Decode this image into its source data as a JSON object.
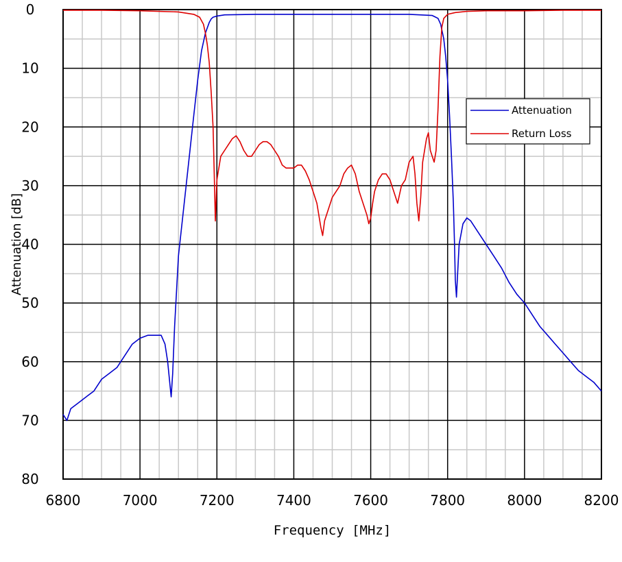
{
  "chart_data": {
    "type": "line",
    "xlabel": "Frequency [MHz]",
    "ylabel": "Attenuation [dB]",
    "xlim": [
      6800,
      8200
    ],
    "ylim": [
      0,
      80
    ],
    "y_inverted": true,
    "x_major_ticks": [
      6800,
      7000,
      7200,
      7400,
      7600,
      7800,
      8000,
      8200
    ],
    "x_tick_labels": [
      "6800",
      "7000",
      "7200",
      "7400",
      "7600",
      "7800",
      "8000",
      "8200"
    ],
    "y_major_ticks": [
      0,
      10,
      20,
      30,
      40,
      50,
      60,
      70,
      80
    ],
    "y_tick_labels": [
      "0",
      "10",
      "20",
      "30",
      "40",
      "50",
      "60",
      "70",
      "80"
    ],
    "x_minor_step": 50,
    "y_minor_step": 5,
    "grid": true,
    "legend_position": "right, upper-middle",
    "series": [
      {
        "name": "Attenuation",
        "color": "#0000cc",
        "x": [
          6800,
          6810,
          6820,
          6840,
          6860,
          6880,
          6900,
          6920,
          6940,
          6960,
          6980,
          7000,
          7020,
          7040,
          7055,
          7065,
          7072,
          7078,
          7081,
          7085,
          7090,
          7095,
          7100,
          7110,
          7120,
          7130,
          7140,
          7150,
          7160,
          7170,
          7180,
          7185,
          7190,
          7200,
          7210,
          7220,
          7300,
          7400,
          7500,
          7600,
          7700,
          7760,
          7775,
          7782,
          7790,
          7795,
          7800,
          7805,
          7810,
          7815,
          7818,
          7820,
          7823,
          7826,
          7830,
          7840,
          7850,
          7860,
          7880,
          7900,
          7920,
          7940,
          7960,
          7980,
          8000,
          8020,
          8040,
          8060,
          8080,
          8100,
          8120,
          8140,
          8160,
          8180,
          8200
        ],
        "y": [
          69,
          70,
          68,
          67,
          66,
          65,
          63,
          62,
          61,
          59,
          57,
          56,
          55.5,
          55.5,
          55.5,
          57,
          60,
          64,
          66,
          62,
          54,
          48,
          42,
          36,
          30,
          24,
          18,
          12,
          7,
          4,
          2.2,
          1.6,
          1.3,
          1.1,
          1.0,
          0.9,
          0.8,
          0.8,
          0.8,
          0.8,
          0.8,
          1.0,
          1.5,
          2.5,
          5,
          8,
          12,
          18,
          25,
          33,
          40,
          46,
          49,
          45,
          40,
          36.5,
          35.5,
          36,
          38,
          40,
          42,
          44,
          46.5,
          48.5,
          50,
          52,
          54,
          55.5,
          57,
          58.5,
          60,
          61.5,
          62.5,
          63.5,
          65
        ]
      },
      {
        "name": "Return Loss",
        "color": "#dd0000",
        "x": [
          6800,
          6900,
          7000,
          7050,
          7100,
          7140,
          7155,
          7165,
          7170,
          7175,
          7180,
          7185,
          7190,
          7193,
          7196,
          7200,
          7210,
          7220,
          7230,
          7240,
          7250,
          7260,
          7270,
          7280,
          7290,
          7300,
          7310,
          7320,
          7330,
          7340,
          7350,
          7360,
          7370,
          7380,
          7390,
          7400,
          7410,
          7420,
          7430,
          7440,
          7450,
          7460,
          7465,
          7470,
          7475,
          7480,
          7490,
          7500,
          7510,
          7520,
          7530,
          7540,
          7550,
          7560,
          7570,
          7580,
          7590,
          7595,
          7600,
          7605,
          7610,
          7620,
          7630,
          7640,
          7650,
          7655,
          7660,
          7670,
          7680,
          7690,
          7700,
          7710,
          7715,
          7720,
          7725,
          7730,
          7735,
          7740,
          7745,
          7750,
          7755,
          7760,
          7765,
          7770,
          7775,
          7780,
          7785,
          7790,
          7800,
          7820,
          7850,
          7900,
          8000,
          8100,
          8200
        ],
        "y": [
          0.1,
          0.1,
          0.2,
          0.3,
          0.4,
          0.8,
          1.3,
          2.5,
          4,
          6,
          9,
          14,
          20,
          28,
          36,
          29,
          25,
          24,
          23,
          22,
          21.5,
          22.5,
          24,
          25,
          25,
          24,
          23,
          22.5,
          22.5,
          23,
          24,
          25,
          26.5,
          27,
          27,
          27,
          26.5,
          26.5,
          27.5,
          29,
          31,
          33,
          35,
          37,
          38.5,
          36,
          34,
          32,
          31,
          30,
          28,
          27,
          26.5,
          28,
          31,
          33,
          35,
          36.5,
          35.5,
          33,
          31,
          29,
          28,
          28,
          29,
          30,
          31,
          33,
          30,
          29,
          26,
          25,
          28,
          33,
          36,
          32,
          26,
          24,
          22,
          21,
          24,
          25,
          26,
          24,
          17,
          8,
          3,
          1.5,
          0.8,
          0.5,
          0.3,
          0.2,
          0.2,
          0.1,
          0.1
        ]
      }
    ]
  }
}
